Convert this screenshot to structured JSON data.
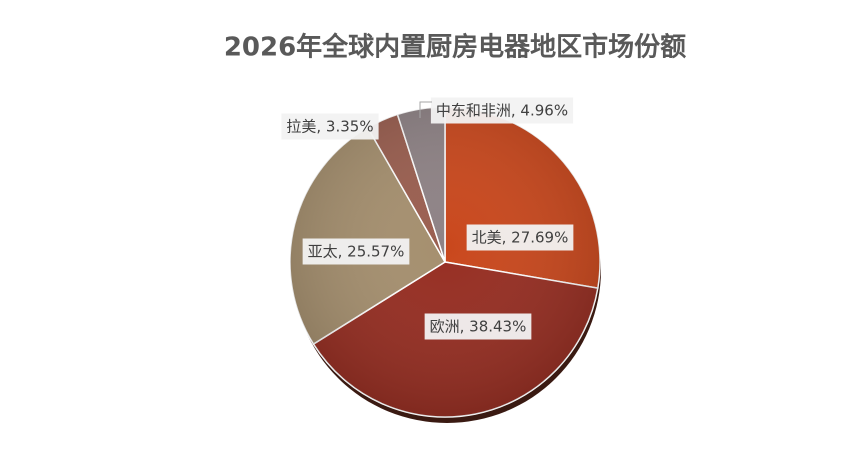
{
  "chart_data": {
    "type": "pie",
    "title": "2026年全球内置厨房电器地区市场份额",
    "values": [
      27.69,
      38.43,
      25.57,
      3.35,
      4.96
    ],
    "value_labels": [
      "北美, 27.69%",
      "欧洲, 38.43%",
      "亚太, 25.57%",
      "拉美, 3.35%",
      "中东和非洲, 4.96%"
    ],
    "colors": [
      "#c9471c",
      "#962d21",
      "#a58f6e",
      "#9a5e4f",
      "#8e8285"
    ]
  }
}
